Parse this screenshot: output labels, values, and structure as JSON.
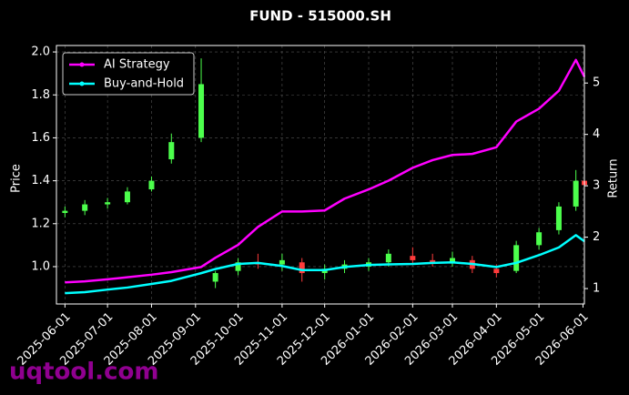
{
  "chart_data": {
    "type": "candlestick",
    "title": "FUND - 515000.SH",
    "ylabel": "Price",
    "y2label": "Return",
    "watermark": "uqtool.com",
    "grid": true,
    "legend": "upper left",
    "up_color": "#4cff4c",
    "down_color": "#ff3b3b",
    "x": [
      "2025-06-01",
      "2025-06-15",
      "2025-07-01",
      "2025-07-15",
      "2025-08-01",
      "2025-08-15",
      "2025-09-05",
      "2025-09-15",
      "2025-10-01",
      "2025-10-15",
      "2025-11-01",
      "2025-11-15",
      "2025-12-01",
      "2025-12-15",
      "2026-01-01",
      "2026-01-15",
      "2026-02-01",
      "2026-02-15",
      "2026-03-01",
      "2026-03-15",
      "2026-04-01",
      "2026-04-15",
      "2026-05-01",
      "2026-05-15",
      "2026-05-27",
      "2026-06-02"
    ],
    "open": [
      1.25,
      1.26,
      1.29,
      1.3,
      1.36,
      1.5,
      1.6,
      0.93,
      0.98,
      1.02,
      1.01,
      1.02,
      0.97,
      0.99,
      1.0,
      1.02,
      1.05,
      1.03,
      1.02,
      1.03,
      0.99,
      0.98,
      1.1,
      1.17,
      1.28,
      1.4
    ],
    "high": [
      1.28,
      1.31,
      1.32,
      1.37,
      1.42,
      1.62,
      1.97,
      0.98,
      1.04,
      1.06,
      1.06,
      1.04,
      1.01,
      1.03,
      1.04,
      1.08,
      1.09,
      1.06,
      1.07,
      1.05,
      1.01,
      1.12,
      1.18,
      1.3,
      1.45,
      1.44
    ],
    "low": [
      1.23,
      1.24,
      1.27,
      1.29,
      1.35,
      1.48,
      1.58,
      0.9,
      0.96,
      0.99,
      0.98,
      0.93,
      0.94,
      0.97,
      0.98,
      1.0,
      1.01,
      1.0,
      1.0,
      0.97,
      0.95,
      0.97,
      1.08,
      1.15,
      1.26,
      1.36
    ],
    "close": [
      1.26,
      1.29,
      1.3,
      1.35,
      1.4,
      1.58,
      1.85,
      0.97,
      1.02,
      1.01,
      1.03,
      0.97,
      0.99,
      1.01,
      1.02,
      1.06,
      1.03,
      1.02,
      1.04,
      0.99,
      0.97,
      1.1,
      1.16,
      1.28,
      1.4,
      1.38
    ],
    "series": [
      {
        "name": "AI Strategy",
        "type": "line",
        "axis": "y2",
        "color": "#ff00ff",
        "values": [
          1.12,
          1.14,
          1.18,
          1.22,
          1.27,
          1.32,
          1.42,
          1.6,
          1.85,
          2.2,
          2.5,
          2.5,
          2.52,
          2.75,
          2.93,
          3.1,
          3.35,
          3.5,
          3.6,
          3.62,
          3.75,
          4.25,
          4.5,
          4.85,
          5.45,
          5.12
        ]
      },
      {
        "name": "Buy-and-Hold",
        "type": "line",
        "axis": "y2",
        "color": "#00ffff",
        "values": [
          0.91,
          0.93,
          0.98,
          1.02,
          1.09,
          1.15,
          1.3,
          1.38,
          1.48,
          1.5,
          1.44,
          1.36,
          1.36,
          1.42,
          1.46,
          1.47,
          1.48,
          1.5,
          1.51,
          1.48,
          1.42,
          1.5,
          1.65,
          1.8,
          2.04,
          1.92
        ]
      }
    ],
    "xlim": [
      "2025-05-26",
      "2026-06-02"
    ],
    "xticks": [
      "2025-06-01",
      "2025-07-01",
      "2025-08-01",
      "2025-09-01",
      "2025-10-01",
      "2025-11-01",
      "2025-12-01",
      "2026-01-01",
      "2026-02-01",
      "2026-03-01",
      "2026-04-01",
      "2026-05-01",
      "2026-06-01"
    ],
    "ylim": [
      0.826,
      2.03
    ],
    "yticks": [
      {
        "value": 1.0,
        "label": "1.0"
      },
      1.2,
      1.4,
      1.6,
      1.8,
      {
        "value": 2.0,
        "label": "2.0"
      }
    ],
    "y2lim": [
      0.7,
      5.73
    ],
    "y2ticks": [
      1,
      2,
      3,
      4,
      5
    ]
  }
}
